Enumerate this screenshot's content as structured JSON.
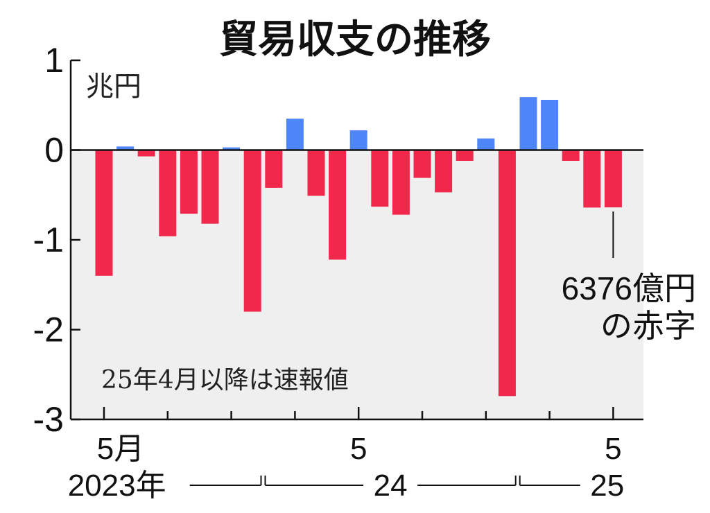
{
  "chart_data": {
    "type": "bar",
    "title": "貿易収支の推移",
    "unit_label": "兆円",
    "ylim": [
      -3,
      1
    ],
    "y_ticks": [
      {
        "value": 1,
        "label": "1"
      },
      {
        "value": 0,
        "label": "0"
      },
      {
        "value": -1,
        "label": "-1"
      },
      {
        "value": -2,
        "label": "-2"
      },
      {
        "value": -3,
        "label": "-3"
      }
    ],
    "categories": [
      "2023-05",
      "2023-06",
      "2023-07",
      "2023-08",
      "2023-09",
      "2023-10",
      "2023-11",
      "2023-12",
      "2024-01",
      "2024-02",
      "2024-03",
      "2024-04",
      "2024-05",
      "2024-06",
      "2024-07",
      "2024-08",
      "2024-09",
      "2024-10",
      "2024-11",
      "2024-12",
      "2025-01",
      "2025-02",
      "2025-03",
      "2025-04",
      "2025-05"
    ],
    "values": [
      -1.4,
      0.04,
      -0.07,
      -0.96,
      -0.71,
      -0.82,
      0.03,
      -1.8,
      -0.42,
      0.35,
      -0.51,
      -1.22,
      0.22,
      -0.63,
      -0.72,
      -0.31,
      -0.47,
      -0.12,
      0.13,
      -2.74,
      0.59,
      0.56,
      -0.12,
      -0.64,
      -0.6376
    ],
    "x_tick_labels": [
      {
        "index": 0,
        "label": "5月"
      },
      {
        "index": 12,
        "label": "5"
      },
      {
        "index": 24,
        "label": "5"
      }
    ],
    "year_labels": [
      {
        "label": "2023年",
        "from": 0,
        "to": 7
      },
      {
        "label": "24",
        "from": 8,
        "to": 19
      },
      {
        "label": "25",
        "from": 20,
        "to": 24
      }
    ],
    "annotation": {
      "index": 24,
      "lines": [
        "6376億円",
        "の赤字"
      ]
    },
    "note": "25年4月以降は速報値",
    "colors": {
      "positive": "#4f86f7",
      "negative": "#f0284b",
      "plot_bg": "#efefef",
      "axis": "#111111"
    }
  }
}
